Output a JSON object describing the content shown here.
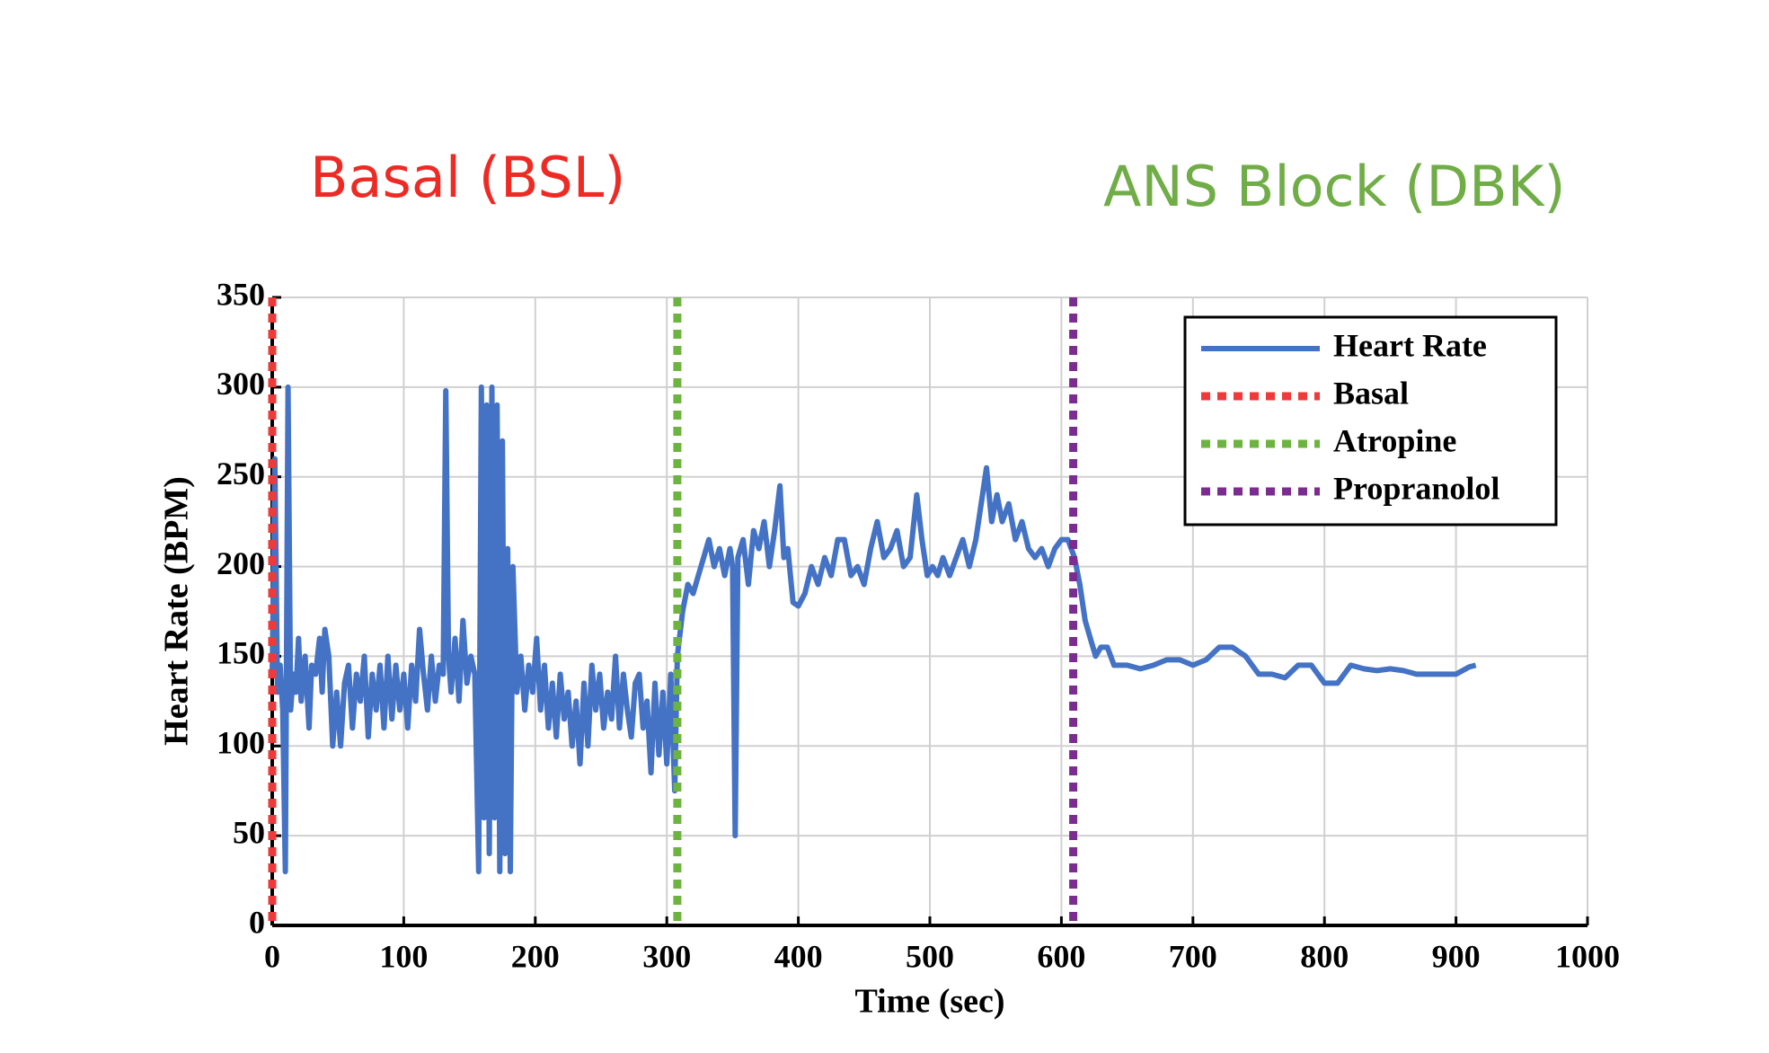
{
  "chart_data": {
    "type": "line",
    "annotations": [
      {
        "text": "Basal (BSL)",
        "color": "#ee2a24"
      },
      {
        "text": "ANS Block (DBK)",
        "color": "#70ad47"
      }
    ],
    "x_label": "Time (sec)",
    "y_label": "Heart Rate (BPM)",
    "x": [
      0,
      2,
      4,
      6,
      8,
      10,
      12,
      14,
      16,
      18,
      20,
      22,
      25,
      28,
      30,
      33,
      36,
      38,
      40,
      43,
      46,
      49,
      52,
      55,
      58,
      61,
      64,
      67,
      70,
      73,
      76,
      79,
      82,
      85,
      88,
      91,
      94,
      97,
      100,
      103,
      106,
      109,
      112,
      115,
      118,
      121,
      124,
      127,
      130,
      132,
      134,
      136,
      139,
      142,
      145,
      148,
      151,
      154,
      157,
      159,
      161,
      163,
      165,
      167,
      169,
      171,
      173,
      175,
      177,
      179,
      181,
      183,
      186,
      189,
      192,
      195,
      198,
      201,
      204,
      207,
      210,
      213,
      216,
      219,
      222,
      225,
      228,
      231,
      234,
      237,
      240,
      243,
      246,
      249,
      252,
      255,
      258,
      261,
      264,
      267,
      270,
      273,
      276,
      279,
      282,
      285,
      288,
      291,
      294,
      297,
      300,
      303,
      306,
      308,
      312,
      316,
      320,
      324,
      328,
      332,
      336,
      340,
      344,
      348,
      350,
      352,
      354,
      358,
      362,
      366,
      370,
      374,
      378,
      382,
      386,
      389,
      392,
      396,
      400,
      405,
      410,
      415,
      420,
      425,
      430,
      435,
      440,
      445,
      450,
      455,
      460,
      465,
      470,
      475,
      480,
      485,
      490,
      494,
      498,
      502,
      506,
      510,
      515,
      520,
      525,
      530,
      535,
      540,
      543,
      547,
      551,
      555,
      560,
      565,
      570,
      575,
      580,
      585,
      590,
      595,
      600,
      605,
      610,
      614,
      618,
      622,
      626,
      630,
      635,
      640,
      650,
      660,
      670,
      680,
      690,
      700,
      710,
      720,
      730,
      740,
      750,
      760,
      770,
      780,
      790,
      800,
      810,
      820,
      830,
      840,
      850,
      860,
      870,
      880,
      890,
      900,
      910,
      915
    ],
    "series": [
      {
        "name": "Heart Rate",
        "color": "#4472c4",
        "values": [
          140,
          260,
          130,
          145,
          120,
          30,
          300,
          120,
          140,
          130,
          160,
          125,
          150,
          110,
          145,
          140,
          160,
          130,
          165,
          150,
          100,
          130,
          100,
          135,
          145,
          110,
          140,
          125,
          150,
          105,
          140,
          120,
          145,
          110,
          150,
          115,
          145,
          120,
          140,
          110,
          145,
          125,
          165,
          140,
          120,
          150,
          125,
          145,
          140,
          298,
          150,
          130,
          160,
          125,
          170,
          135,
          150,
          140,
          30,
          300,
          60,
          290,
          40,
          300,
          60,
          290,
          30,
          270,
          40,
          210,
          30,
          200,
          130,
          150,
          120,
          145,
          130,
          160,
          120,
          145,
          110,
          135,
          105,
          140,
          115,
          130,
          100,
          125,
          90,
          135,
          100,
          145,
          120,
          140,
          110,
          130,
          115,
          150,
          110,
          140,
          120,
          105,
          135,
          140,
          110,
          125,
          85,
          135,
          95,
          130,
          90,
          140,
          75,
          150,
          175,
          190,
          185,
          195,
          205,
          215,
          200,
          210,
          195,
          210,
          200,
          50,
          205,
          215,
          190,
          220,
          210,
          225,
          200,
          220,
          245,
          205,
          210,
          180,
          178,
          185,
          200,
          190,
          205,
          195,
          215,
          215,
          195,
          200,
          190,
          210,
          225,
          205,
          210,
          220,
          200,
          205,
          240,
          215,
          195,
          200,
          195,
          205,
          195,
          205,
          215,
          200,
          215,
          240,
          255,
          225,
          240,
          225,
          235,
          215,
          225,
          210,
          205,
          210,
          200,
          210,
          215,
          215,
          205,
          190,
          170,
          160,
          150,
          155,
          155,
          145,
          145,
          143,
          145,
          148,
          148,
          145,
          148,
          155,
          155,
          150,
          140,
          140,
          138,
          145,
          145,
          135,
          135,
          145,
          143,
          142,
          143,
          142,
          140,
          140,
          140,
          140,
          144,
          145
        ]
      }
    ],
    "vlines": [
      {
        "name": "Basal",
        "color": "#ee3a3a",
        "x": 0
      },
      {
        "name": "Atropine",
        "color": "#6db33f",
        "x": 308
      },
      {
        "name": "Propranolol",
        "color": "#7b2c8f",
        "x": 609
      }
    ],
    "xlim": [
      0,
      1000
    ],
    "xticks": [
      0,
      100,
      200,
      300,
      400,
      500,
      600,
      700,
      800,
      900,
      1000
    ],
    "ylim": [
      0,
      350
    ],
    "yticks": [
      0,
      50,
      100,
      150,
      200,
      250,
      300,
      350
    ],
    "grid": true,
    "legend": "upper right"
  }
}
